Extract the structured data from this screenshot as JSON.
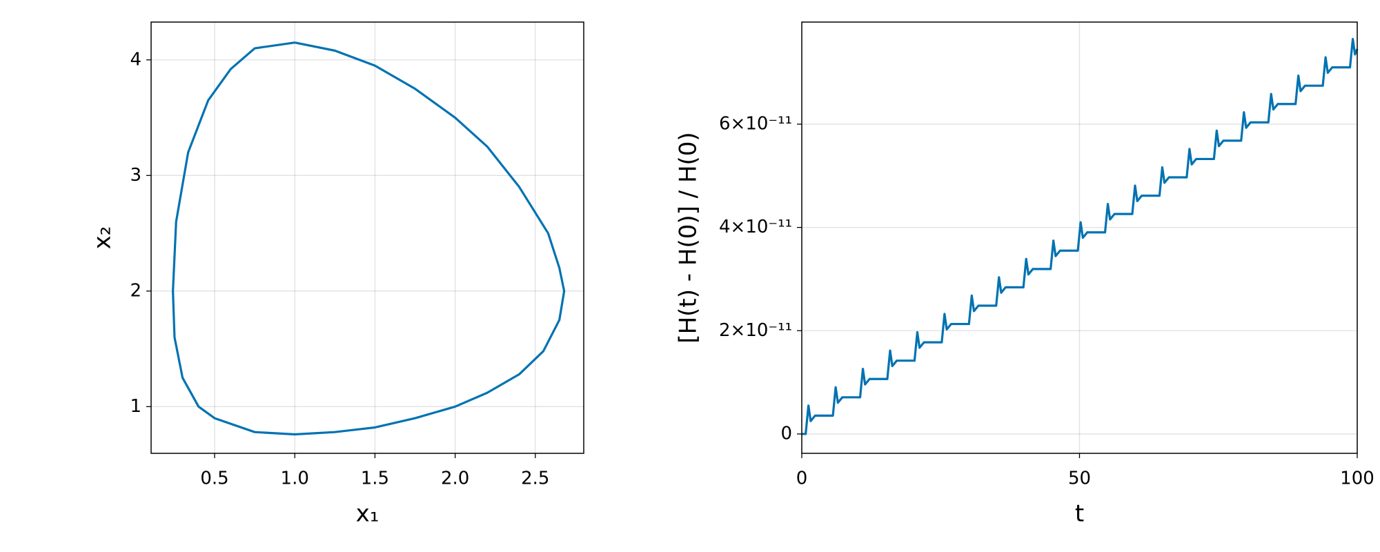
{
  "chart_data": [
    {
      "type": "line",
      "xlabel": "x₁",
      "ylabel": "x₂",
      "xlim": [
        0.104,
        2.802
      ],
      "ylim": [
        0.596,
        4.327
      ],
      "xticks": [
        0.5,
        {
          "value": 1,
          "label": "1.0"
        },
        1.5,
        {
          "value": 2,
          "label": "2.0"
        },
        2.5
      ],
      "yticks": [
        1,
        2,
        3,
        4
      ],
      "grid": true,
      "series": [
        {
          "color": "#0072b2",
          "x": [
            1.0,
            1.25,
            1.5,
            1.75,
            2.0,
            2.2,
            2.4,
            2.58,
            2.65,
            2.68,
            2.65,
            2.55,
            2.4,
            2.2,
            2.0,
            1.75,
            1.5,
            1.25,
            1.0,
            0.75,
            0.5,
            0.4,
            0.3,
            0.25,
            0.24,
            0.26,
            0.335,
            0.46,
            0.6,
            0.75,
            1.0
          ],
          "values": [
            4.15,
            4.08,
            3.95,
            3.75,
            3.5,
            3.25,
            2.9,
            2.5,
            2.2,
            2.0,
            1.75,
            1.48,
            1.28,
            1.12,
            1.0,
            0.9,
            0.82,
            0.78,
            0.76,
            0.78,
            0.9,
            1.0,
            1.25,
            1.6,
            2.0,
            2.6,
            3.2,
            3.65,
            3.92,
            4.1,
            4.15
          ]
        }
      ]
    },
    {
      "type": "line",
      "xlabel": "t",
      "ylabel": "[H(t) - H(0)] / H(0)",
      "xlim": [
        0,
        100
      ],
      "ylim": [
        -3.75e-12,
        7.977e-11
      ],
      "xticks": [
        0,
        50,
        100
      ],
      "yticks": [
        0,
        {
          "value": 2e-11,
          "label": "2×10⁻¹¹"
        },
        {
          "value": 4e-11,
          "label": "4×10⁻¹¹"
        },
        {
          "value": 6e-11,
          "label": "6×10⁻¹¹"
        }
      ],
      "grid": true,
      "series": [
        {
          "color": "#0072b2",
          "x": [
            0,
            0.7,
            1.2,
            1.6,
            2.4,
            5.6,
            6.1,
            6.5,
            7.3,
            10.5,
            11.0,
            11.4,
            12.2,
            15.4,
            15.9,
            16.3,
            17.1,
            20.3,
            20.8,
            21.2,
            22.0,
            25.2,
            25.7,
            26.1,
            26.9,
            30.1,
            30.6,
            31.0,
            31.8,
            35.0,
            35.5,
            35.9,
            36.7,
            39.9,
            40.4,
            40.8,
            41.6,
            44.8,
            45.3,
            45.7,
            46.5,
            49.7,
            50.2,
            50.6,
            51.4,
            54.6,
            55.1,
            55.5,
            56.3,
            59.5,
            60.0,
            60.4,
            61.2,
            64.4,
            64.9,
            65.3,
            66.1,
            69.3,
            69.8,
            70.2,
            71.0,
            74.2,
            74.7,
            75.1,
            75.9,
            79.1,
            79.6,
            80.0,
            80.8,
            84.0,
            84.5,
            84.9,
            85.7,
            88.9,
            89.4,
            89.8,
            90.6,
            93.8,
            94.3,
            94.7,
            95.5,
            98.7,
            99.2,
            99.6,
            100
          ],
          "values": [
            0,
            0,
            5.5e-12,
            2.5e-12,
            3.55e-12,
            3.55e-12,
            9.05e-12,
            6.05e-12,
            7.1e-12,
            7.1e-12,
            1.26e-11,
            9.6e-12,
            1.065e-11,
            1.065e-11,
            1.615e-11,
            1.315e-11,
            1.42e-11,
            1.42e-11,
            1.97e-11,
            1.67e-11,
            1.775e-11,
            1.775e-11,
            2.325e-11,
            2.025e-11,
            2.13e-11,
            2.13e-11,
            2.68e-11,
            2.38e-11,
            2.485e-11,
            2.485e-11,
            3.035e-11,
            2.735e-11,
            2.84e-11,
            2.84e-11,
            3.39e-11,
            3.09e-11,
            3.195e-11,
            3.195e-11,
            3.745e-11,
            3.445e-11,
            3.55e-11,
            3.55e-11,
            4.1e-11,
            3.8e-11,
            3.905e-11,
            3.905e-11,
            4.455e-11,
            4.155e-11,
            4.26e-11,
            4.26e-11,
            4.81e-11,
            4.51e-11,
            4.615e-11,
            4.615e-11,
            5.165e-11,
            4.865e-11,
            4.97e-11,
            4.97e-11,
            5.52e-11,
            5.22e-11,
            5.325e-11,
            5.325e-11,
            5.875e-11,
            5.575e-11,
            5.68e-11,
            5.68e-11,
            6.23e-11,
            5.93e-11,
            6.035e-11,
            6.035e-11,
            6.585e-11,
            6.285e-11,
            6.39e-11,
            6.39e-11,
            6.94e-11,
            6.64e-11,
            6.745e-11,
            6.745e-11,
            7.295e-11,
            6.995e-11,
            7.1e-11,
            7.1e-11,
            7.65e-11,
            7.35e-11,
            7.455e-11
          ]
        }
      ]
    }
  ]
}
